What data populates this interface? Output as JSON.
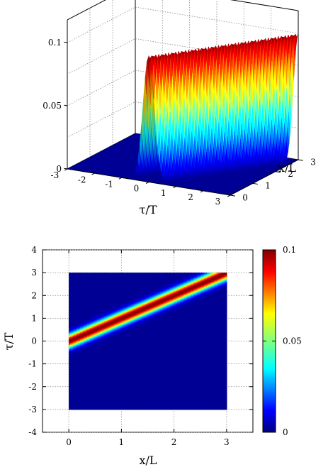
{
  "chart_data": [
    {
      "type": "surface",
      "xlabel": "τ/T",
      "ylabel": "x/L",
      "zlabel": "",
      "x_ticks": [
        "-3",
        "-2",
        "-1",
        "0",
        "1",
        "2",
        "3"
      ],
      "y_ticks": [
        "0",
        "1",
        "2",
        "3"
      ],
      "z_ticks": [
        "0",
        "0.05",
        "0.1"
      ],
      "xlim": [
        -3,
        3
      ],
      "ylim": [
        0,
        3
      ],
      "zlim": [
        0,
        0.1
      ],
      "grid": true,
      "colormap": "jet",
      "function": {
        "form": "gaussian",
        "peak": 0.1,
        "center_at_x0": 0.0,
        "drift_per_x": 1.0,
        "width": 0.3
      }
    },
    {
      "type": "heatmap",
      "xlabel": "x/L",
      "ylabel": "τ/T",
      "x_ticks": [
        "0",
        "1",
        "2",
        "3"
      ],
      "y_ticks": [
        "-4",
        "-3",
        "-2",
        "-1",
        "0",
        "1",
        "2",
        "3",
        "4"
      ],
      "xlim": [
        -0.5,
        3.5
      ],
      "ylim": [
        -4,
        4
      ],
      "data_x_range": [
        0,
        3
      ],
      "data_y_range": [
        -3,
        3
      ],
      "grid": true,
      "colormap": "jet",
      "colorbar": {
        "ticks": [
          "0",
          "0.05",
          "0.1"
        ],
        "range": [
          0,
          0.1
        ]
      },
      "function": {
        "form": "gaussian",
        "peak": 0.1,
        "center_at_x0": 0.0,
        "drift_per_x": 1.0,
        "width": 0.3
      }
    }
  ]
}
